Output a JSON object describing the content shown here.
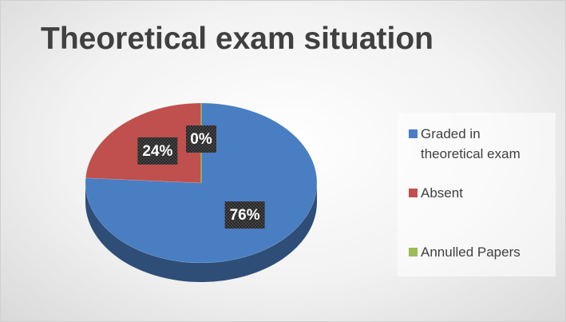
{
  "chart_data": {
    "type": "pie",
    "title": "Theoretical exam situation",
    "categories": [
      "Graded in theoretical exam",
      "Absent",
      "Annulled Papers"
    ],
    "values": [
      76,
      24,
      0
    ],
    "value_labels": [
      "76%",
      "24%",
      "0%"
    ],
    "colors": [
      "#4a7ec2",
      "#c0504d",
      "#9bbb59"
    ],
    "legend": "right"
  }
}
